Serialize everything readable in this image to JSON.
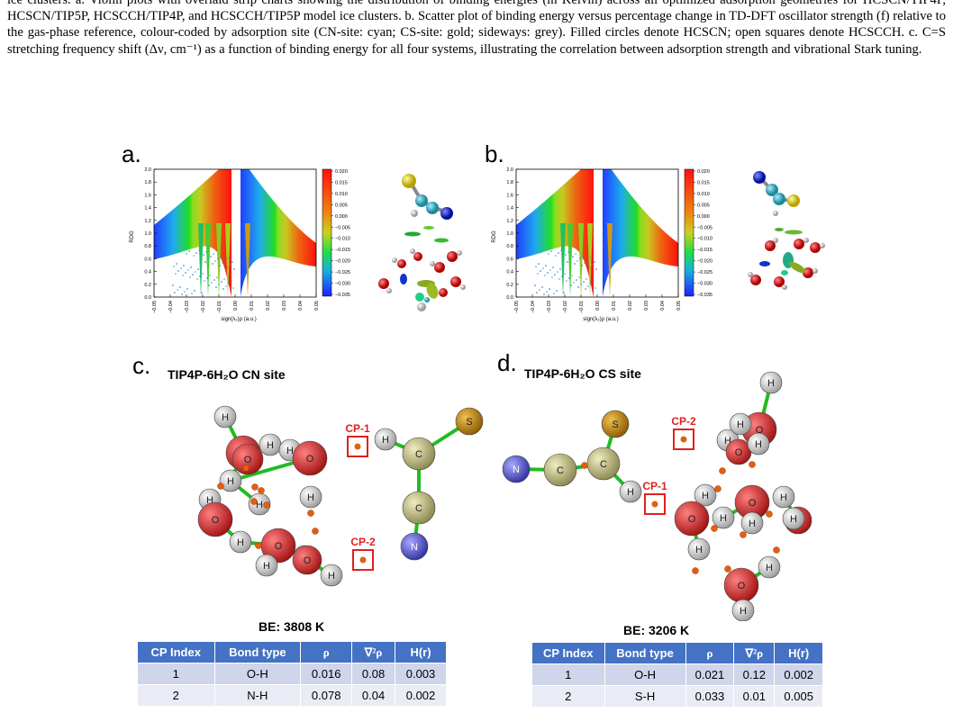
{
  "caption": {
    "text": "ice clusters. a. Violin plots with overlaid strip charts showing the distribution of binding energies (in Kelvin) across all optimized adsorption geometries for HCSCN/TIP4P, HCSCN/TIP5P, HCSCCH/TIP4P, and HCSCCH/TIP5P model ice clusters. b. Scatter plot of binding energy versus percentage change in TD-DFT oscillator strength (f) relative to the gas-phase reference, colour-coded by adsorption site (CN-site: cyan; CS-site: gold; sideways: grey). Filled circles denote HCSCN; open squares denote HCSCCH. c. C=S stretching frequency shift (Δν, cm⁻¹) as a function of binding energy for all four systems, illustrating the correlation between adsorption strength and vibrational Stark tuning."
  },
  "panels": {
    "a": {
      "label": "a."
    },
    "b": {
      "label": "b."
    },
    "c": {
      "label": "c.",
      "title": "TIP4P-6H₂O CN site",
      "be": "BE: 3808 K",
      "cp1": "CP-1",
      "cp2": "CP-2"
    },
    "d": {
      "label": "d.",
      "title": "TIP4P-6H₂O CS site",
      "be": "BE: 3206 K",
      "cp1": "CP-1",
      "cp2": "CP-2"
    }
  },
  "nci_plot": {
    "ylabel": "RDG",
    "xlabel": "sign(λ₂)ρ (a.u.)",
    "yticks": [
      "0.0",
      "0.2",
      "0.4",
      "0.6",
      "0.8",
      "1.0",
      "1.2",
      "1.4",
      "1.6",
      "1.8",
      "2.0"
    ],
    "xticks": [
      "−0.05",
      "−0.04",
      "−0.03",
      "−0.02",
      "−0.01",
      "0.00",
      "0.01",
      "0.02",
      "0.03",
      "0.04",
      "0.05"
    ],
    "colorbar": [
      "0.020",
      "0.015",
      "0.010",
      "0.005",
      "0.000",
      "−0.005",
      "−0.010",
      "−0.015",
      "−0.020",
      "−0.025",
      "−0.030",
      "−0.035"
    ]
  },
  "atoms": {
    "H": "H",
    "O": "O",
    "C": "C",
    "N": "N",
    "S": "S"
  },
  "tables": {
    "c": {
      "headers": [
        "CP Index",
        "Bond type",
        "ρ",
        "∇²ρ",
        "H(r)"
      ],
      "rows": [
        [
          "1",
          "O-H",
          "0.016",
          "0.08",
          "0.003"
        ],
        [
          "2",
          "N-H",
          "0.078",
          "0.04",
          "0.002"
        ]
      ]
    },
    "d": {
      "headers": [
        "CP Index",
        "Bond type",
        "ρ",
        "∇²ρ",
        "H(r)"
      ],
      "rows": [
        [
          "1",
          "O-H",
          "0.021",
          "0.12",
          "0.002"
        ],
        [
          "2",
          "S-H",
          "0.033",
          "0.01",
          "0.005"
        ]
      ]
    }
  },
  "colors": {
    "oxygen": "#cc2222",
    "hydrogen": "#e8e8e8",
    "carbon": "#c8c48a",
    "nitrogen": "#6a6ad0",
    "sulfur": "#c8921a",
    "critical_point": "#e06010",
    "cp_box": "#e02020",
    "table_header": "#4472c4"
  }
}
